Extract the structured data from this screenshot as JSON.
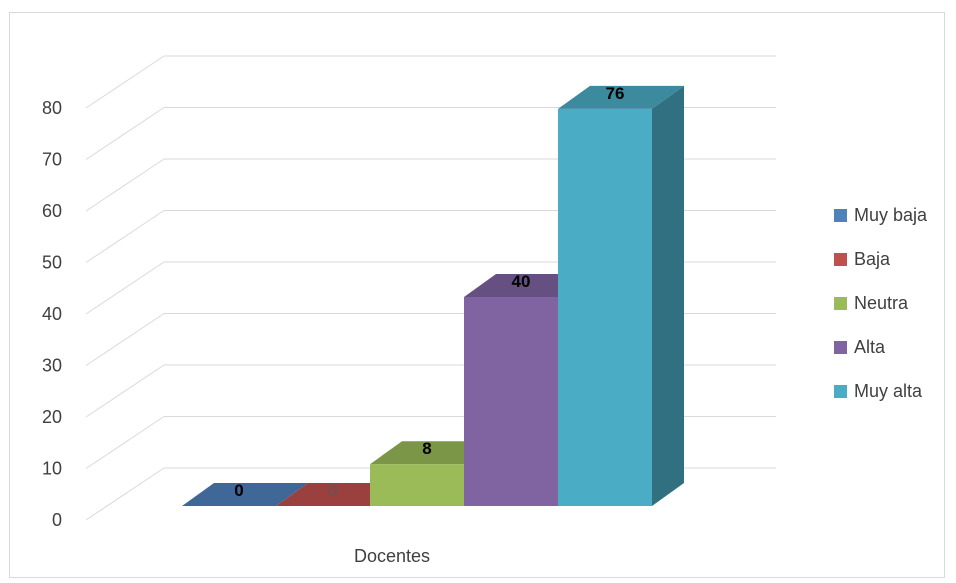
{
  "chart_data": {
    "type": "bar",
    "categories": [
      "Docentes"
    ],
    "series": [
      {
        "name": "Muy baja",
        "values": [
          0
        ],
        "color": "#4f81bd",
        "label_bold": true
      },
      {
        "name": "Baja",
        "values": [
          0
        ],
        "color": "#c0504d",
        "label_bold": false
      },
      {
        "name": "Neutra",
        "values": [
          8
        ],
        "color": "#9bbb59",
        "label_bold": true
      },
      {
        "name": "Alta",
        "values": [
          40
        ],
        "color": "#8064a2",
        "label_bold": true
      },
      {
        "name": "Muy alta",
        "values": [
          76
        ],
        "color": "#4bacc6",
        "label_bold": true
      }
    ],
    "title": "",
    "xlabel": "",
    "ylabel": "",
    "ylim": [
      0,
      80
    ],
    "yticks": [
      0,
      10,
      20,
      30,
      40,
      50,
      60,
      70,
      80
    ],
    "grid": true,
    "legend_position": "right",
    "style": "3d-column"
  }
}
